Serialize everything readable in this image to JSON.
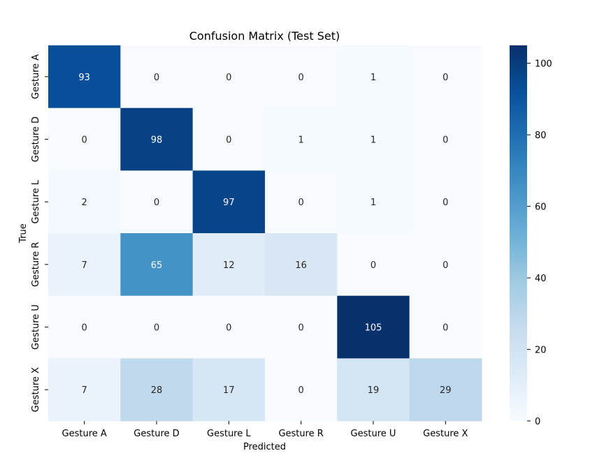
{
  "chart_data": {
    "type": "heatmap",
    "title": "Confusion Matrix (Test Set)",
    "xlabel": "Predicted",
    "ylabel": "True",
    "x_categories": [
      "Gesture A",
      "Gesture D",
      "Gesture L",
      "Gesture R",
      "Gesture U",
      "Gesture X"
    ],
    "y_categories": [
      "Gesture A",
      "Gesture D",
      "Gesture L",
      "Gesture R",
      "Gesture U",
      "Gesture X"
    ],
    "matrix": [
      [
        93,
        0,
        0,
        0,
        1,
        0
      ],
      [
        0,
        98,
        0,
        1,
        1,
        0
      ],
      [
        2,
        0,
        97,
        0,
        1,
        0
      ],
      [
        7,
        65,
        12,
        16,
        0,
        0
      ],
      [
        0,
        0,
        0,
        0,
        105,
        0
      ],
      [
        7,
        28,
        17,
        0,
        19,
        29
      ]
    ],
    "colorbar": {
      "range": [
        0,
        105
      ],
      "ticks": [
        0,
        20,
        40,
        60,
        80,
        100
      ]
    },
    "colormap": "Blues",
    "colormap_stops": [
      "#f7fbff",
      "#deebf7",
      "#c6dbef",
      "#9ecae1",
      "#6baed6",
      "#4292c6",
      "#2171b5",
      "#08519c",
      "#08306b"
    ],
    "annotation_colors": {
      "light_cells": "#262626",
      "dark_cells": "#ffffff"
    }
  }
}
